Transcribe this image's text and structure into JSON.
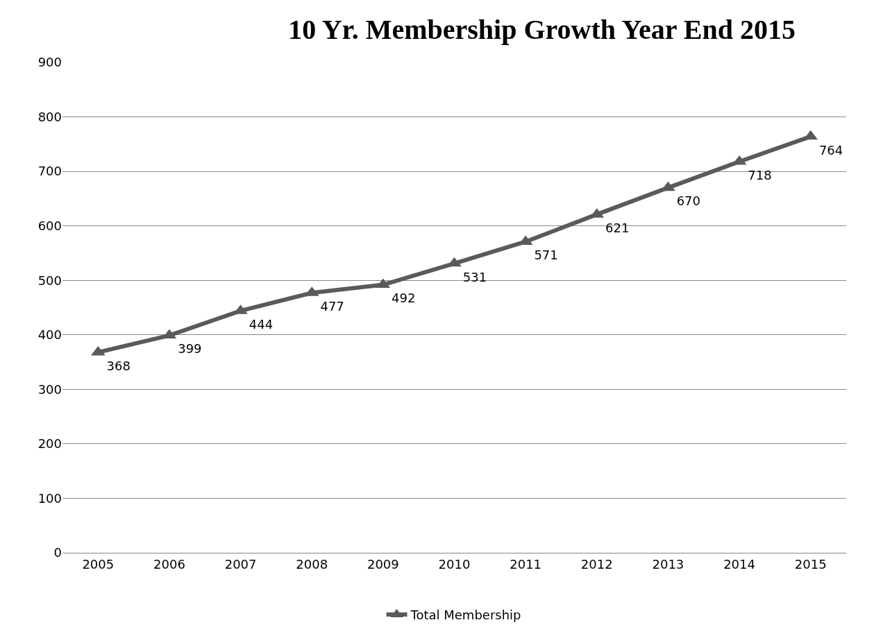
{
  "chart_data": {
    "type": "line",
    "title": "10 Yr. Membership Growth Year End 2015",
    "categories": [
      "2005",
      "2006",
      "2007",
      "2008",
      "2009",
      "2010",
      "2011",
      "2012",
      "2013",
      "2014",
      "2015"
    ],
    "series": [
      {
        "name": "Total Membership",
        "color": "#5a5a5a",
        "values": [
          368,
          399,
          444,
          477,
          492,
          531,
          571,
          621,
          670,
          718,
          764
        ]
      }
    ],
    "ylim": [
      0,
      900
    ],
    "yticks": [
      0,
      100,
      200,
      300,
      400,
      500,
      600,
      700,
      800,
      900
    ],
    "grid": "y",
    "legend": "bottom",
    "marker": "triangle",
    "line_style": "solid",
    "data_labels": true
  }
}
